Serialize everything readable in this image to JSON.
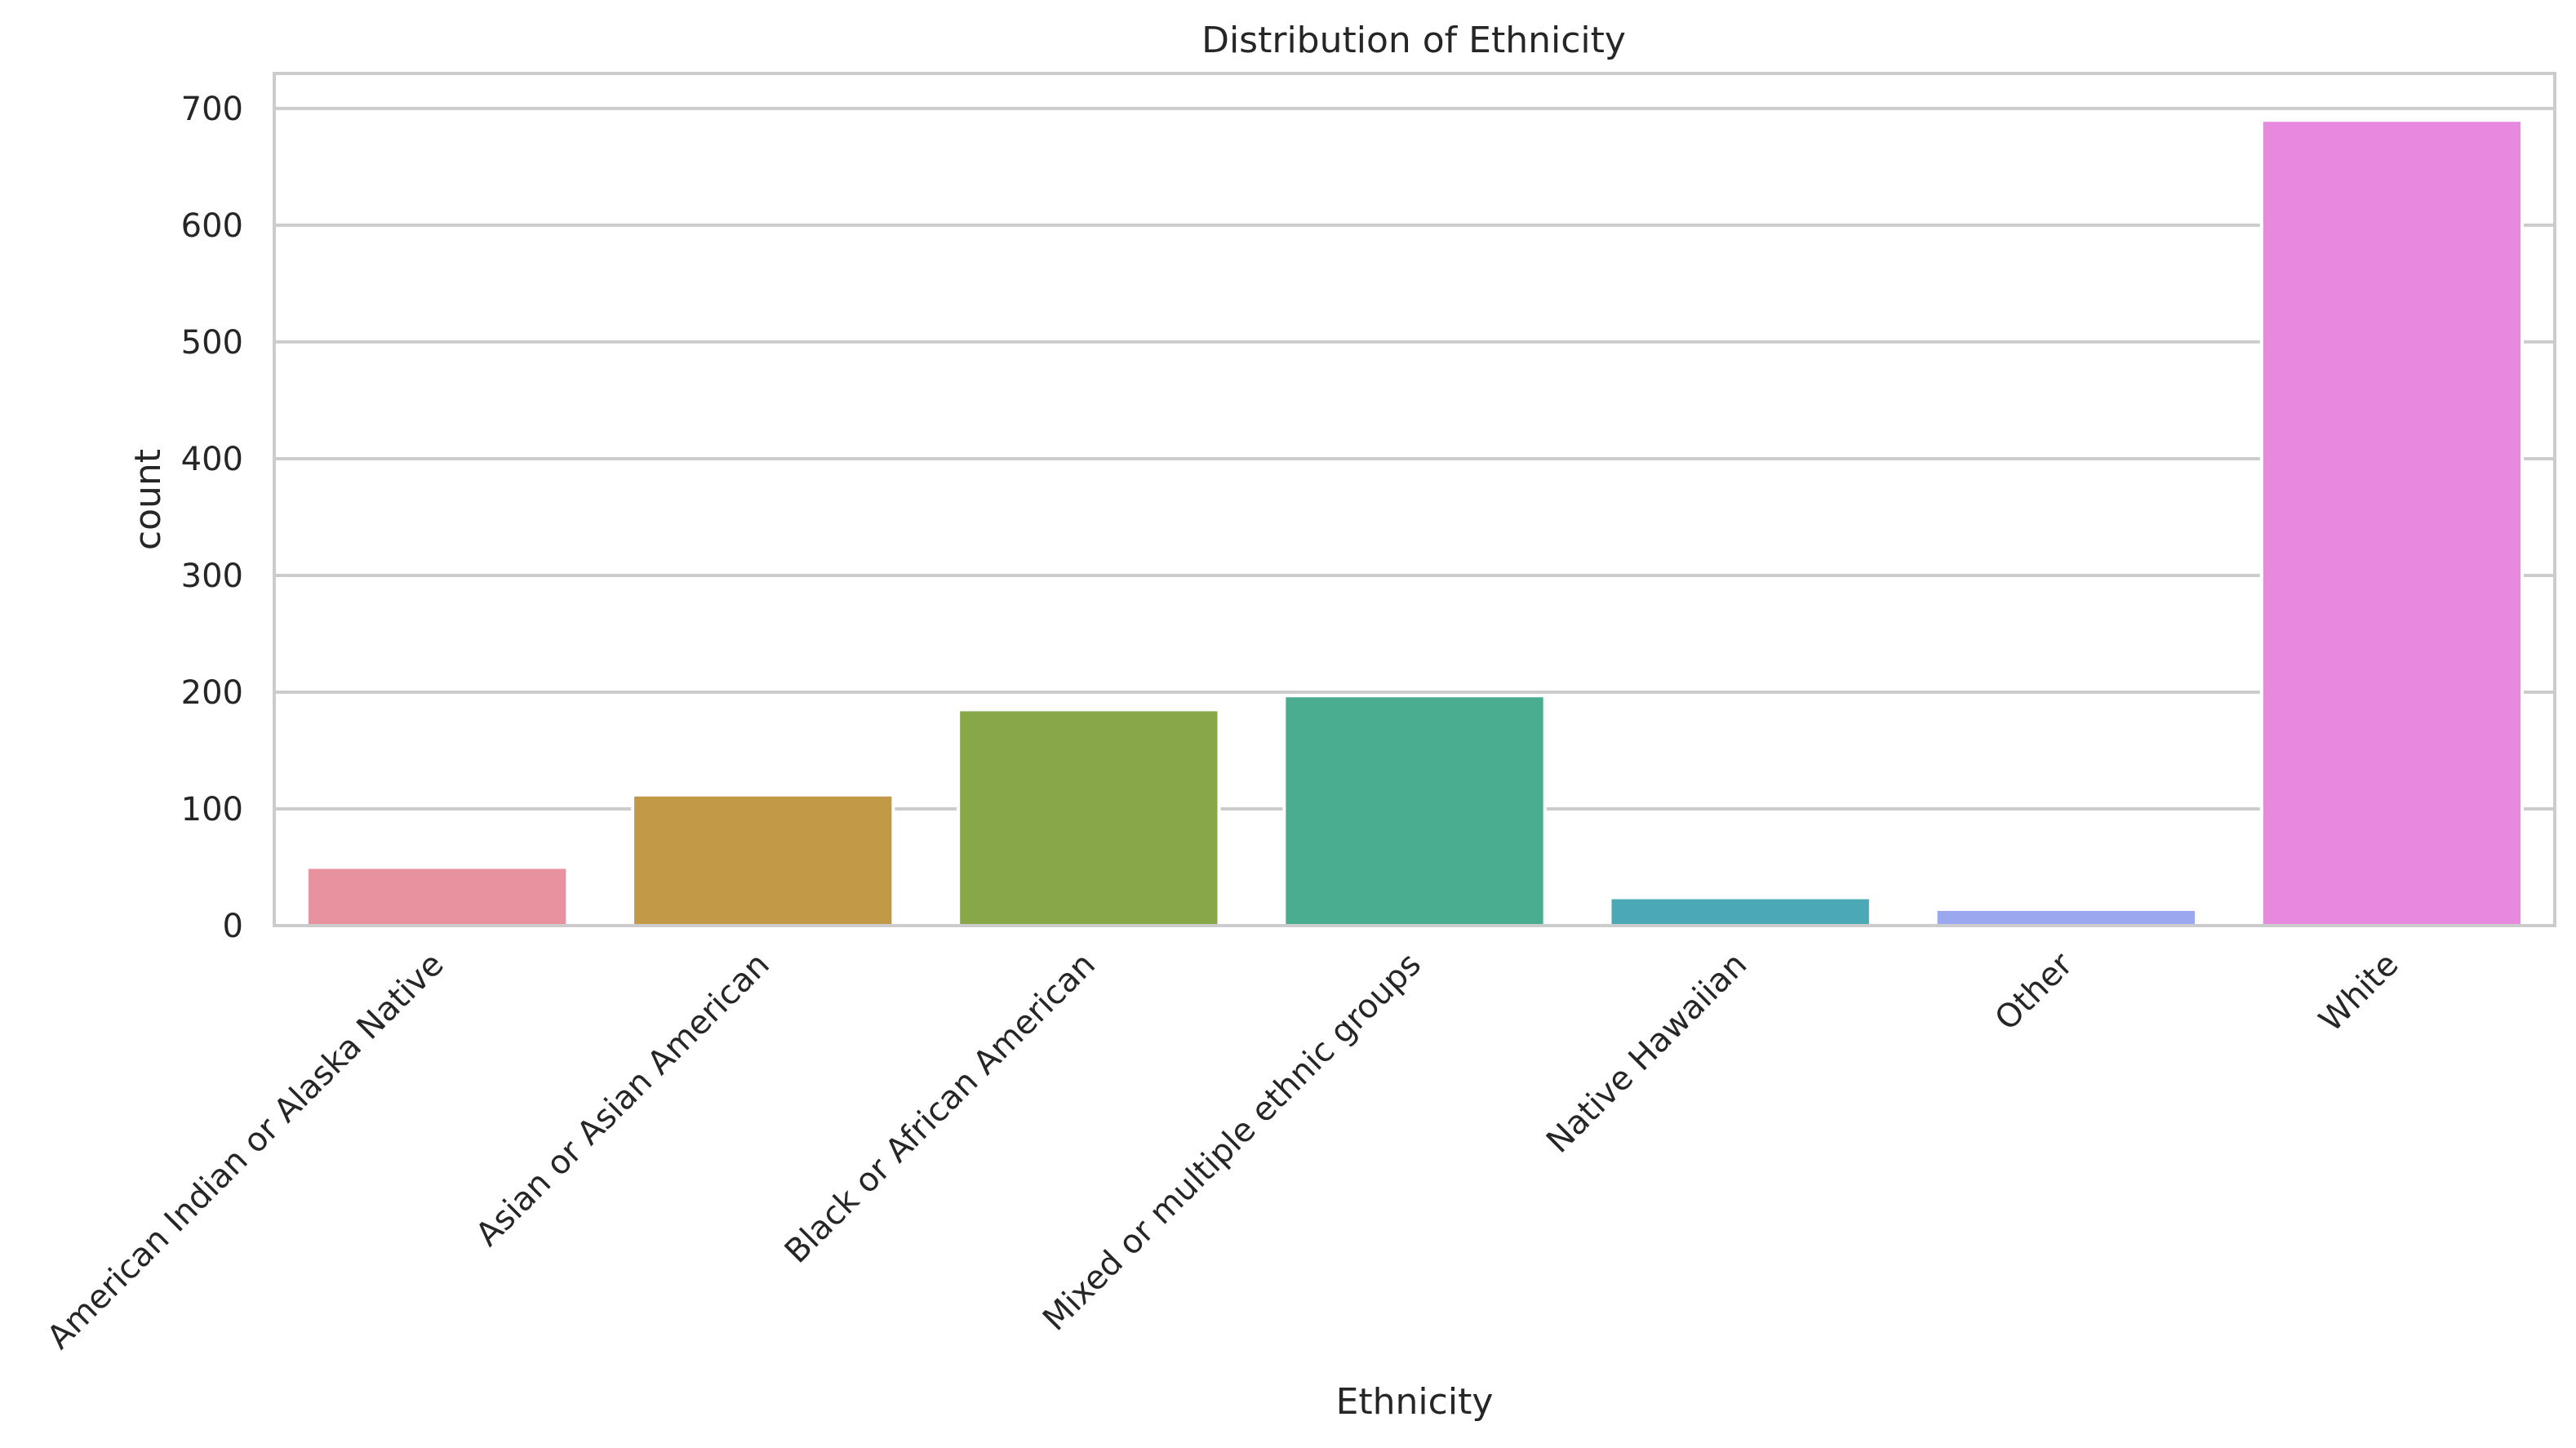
{
  "chart_data": {
    "type": "bar",
    "title": "Distribution of Ethnicity",
    "xlabel": "Ethnicity",
    "ylabel": "count",
    "ylim": [
      0,
      730
    ],
    "yticks": [
      0,
      100,
      200,
      300,
      400,
      500,
      600,
      700
    ],
    "grid": "horizontal",
    "categories": [
      "American Indian or Alaska Native",
      "Asian or Asian American",
      "Black or African American",
      "Mixed or multiple ethnic groups",
      "Native Hawaiian",
      "Other",
      "White"
    ],
    "values": [
      50,
      112,
      185,
      197,
      24,
      14,
      690
    ],
    "colors": [
      "#e8919f",
      "#c29a47",
      "#87a748",
      "#4aad8f",
      "#4aa9b5",
      "#9ba7ef",
      "#e789df"
    ]
  }
}
